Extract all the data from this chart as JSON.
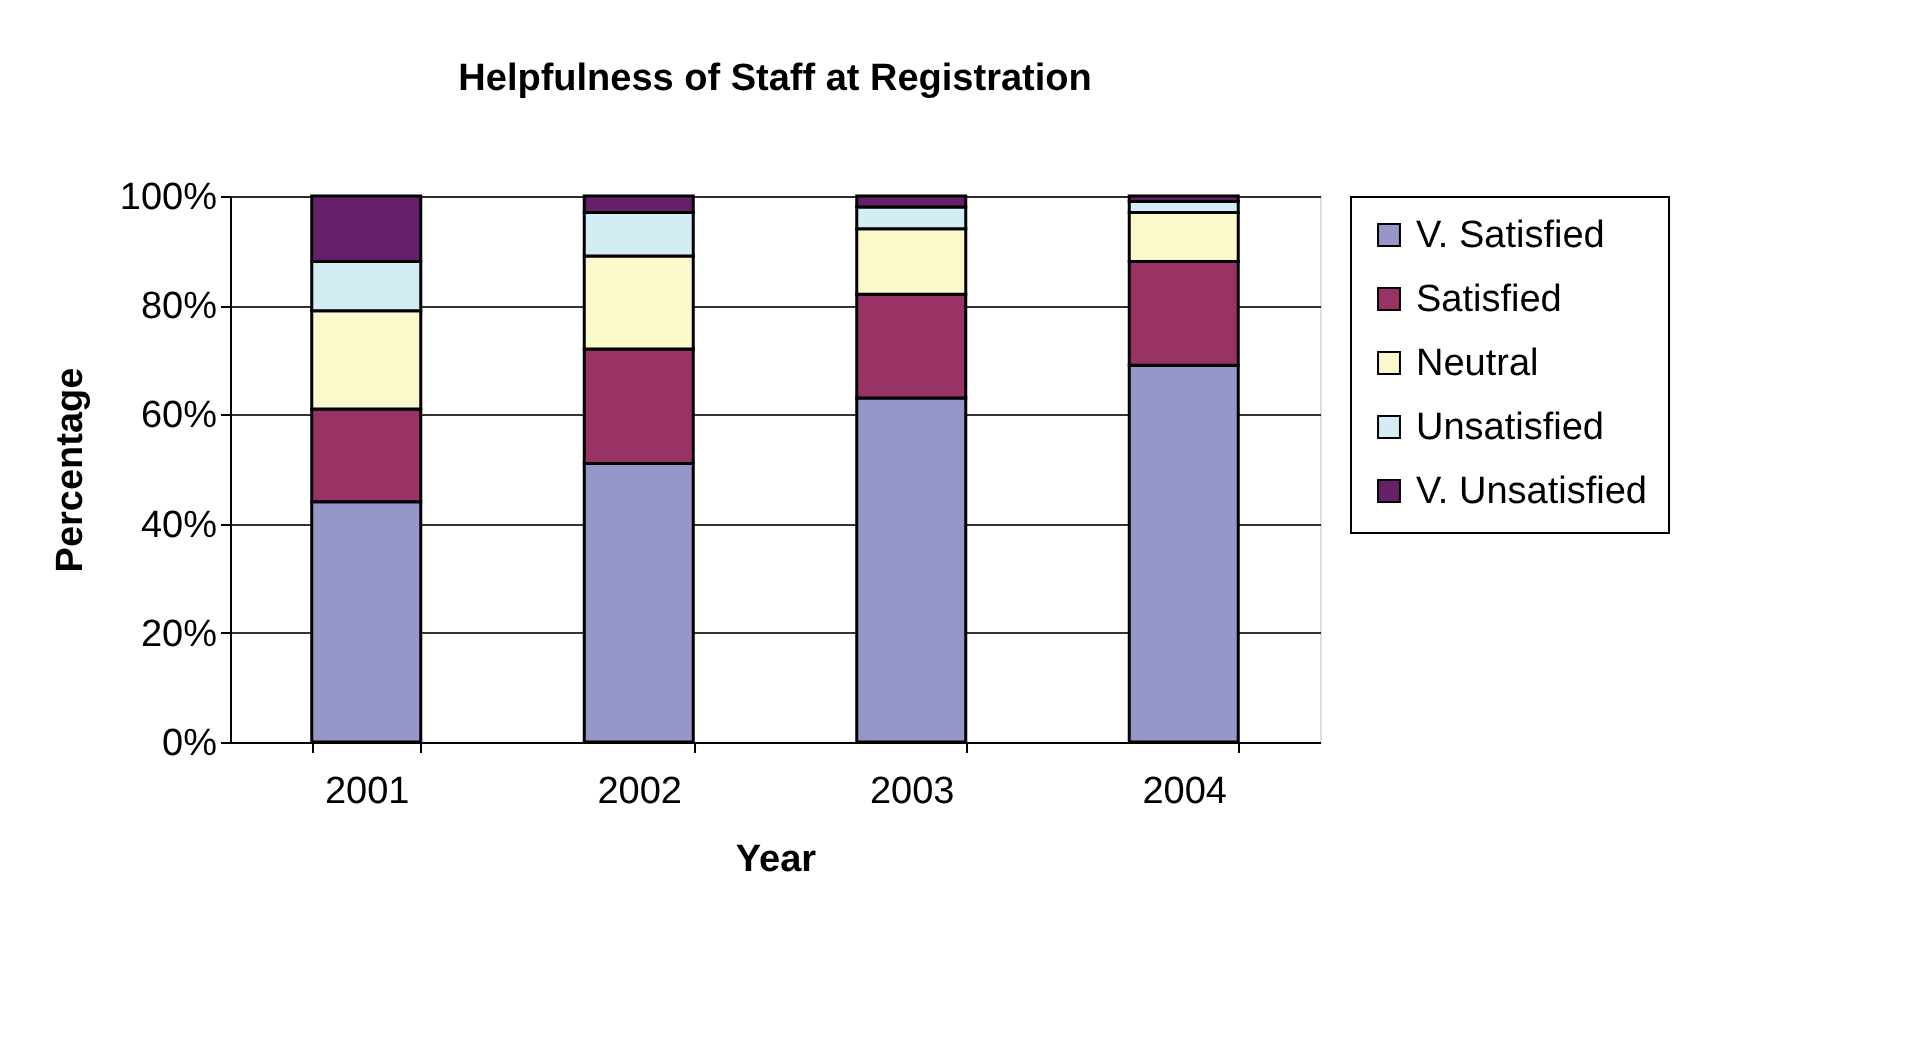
{
  "chart_data": {
    "type": "bar",
    "stacked": true,
    "title": "Helpfulness of Staff at Registration",
    "xlabel": "Year",
    "ylabel": "Percentage",
    "categories": [
      "2001",
      "2002",
      "2003",
      "2004"
    ],
    "series": [
      {
        "name": "V. Satisfied",
        "color": "#9696c8",
        "values": [
          44,
          51,
          63,
          69
        ]
      },
      {
        "name": "Satisfied",
        "color": "#993366",
        "values": [
          17,
          21,
          19,
          19
        ]
      },
      {
        "name": "Neutral",
        "color": "#fbf8cc",
        "values": [
          18,
          17,
          12,
          9
        ]
      },
      {
        "name": "Unsatisfied",
        "color": "#d2eef4",
        "values": [
          9,
          8,
          4,
          2
        ]
      },
      {
        "name": "V. Unsatisfied",
        "color": "#66206a",
        "values": [
          12,
          3,
          2,
          1
        ]
      }
    ],
    "ylim": [
      0,
      100
    ],
    "yticks": [
      {
        "value": 0,
        "label": "0%"
      },
      {
        "value": 20,
        "label": "20%"
      },
      {
        "value": 40,
        "label": "40%"
      },
      {
        "value": 60,
        "label": "60%"
      },
      {
        "value": 80,
        "label": "80%"
      },
      {
        "value": 100,
        "label": "100%"
      }
    ],
    "grid": "y",
    "legend": "right"
  }
}
